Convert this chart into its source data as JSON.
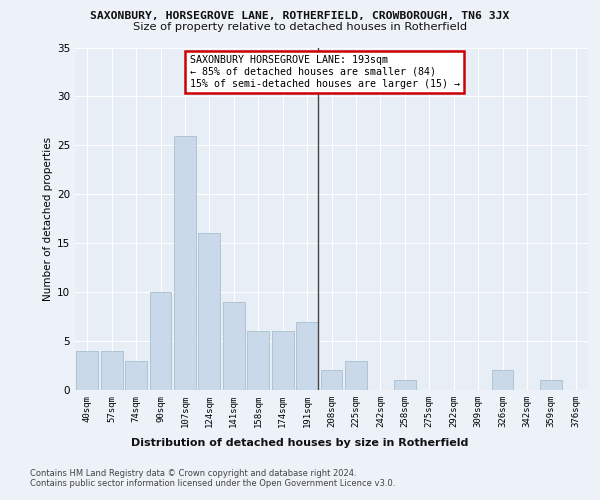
{
  "title_main": "SAXONBURY, HORSEGROVE LANE, ROTHERFIELD, CROWBOROUGH, TN6 3JX",
  "title_sub": "Size of property relative to detached houses in Rotherfield",
  "xlabel": "Distribution of detached houses by size in Rotherfield",
  "ylabel": "Number of detached properties",
  "categories": [
    "40sqm",
    "57sqm",
    "74sqm",
    "90sqm",
    "107sqm",
    "124sqm",
    "141sqm",
    "158sqm",
    "174sqm",
    "191sqm",
    "208sqm",
    "225sqm",
    "242sqm",
    "258sqm",
    "275sqm",
    "292sqm",
    "309sqm",
    "326sqm",
    "342sqm",
    "359sqm",
    "376sqm"
  ],
  "values": [
    4,
    4,
    3,
    10,
    26,
    16,
    9,
    6,
    6,
    7,
    2,
    3,
    0,
    1,
    0,
    0,
    0,
    2,
    0,
    1,
    0
  ],
  "bar_color": "#c9d9ea",
  "bar_edge_color": "#aabfcf",
  "vline_x_index": 9,
  "vline_color": "#444444",
  "annotation_text": "SAXONBURY HORSEGROVE LANE: 193sqm\n← 85% of detached houses are smaller (84)\n15% of semi-detached houses are larger (15) →",
  "annotation_box_color": "#ffffff",
  "annotation_box_edge_color": "#cc0000",
  "ylim": [
    0,
    35
  ],
  "yticks": [
    0,
    5,
    10,
    15,
    20,
    25,
    30,
    35
  ],
  "background_color": "#e8eef6",
  "grid_color": "#ffffff",
  "footer_line1": "Contains HM Land Registry data © Crown copyright and database right 2024.",
  "footer_line2": "Contains public sector information licensed under the Open Government Licence v3.0."
}
